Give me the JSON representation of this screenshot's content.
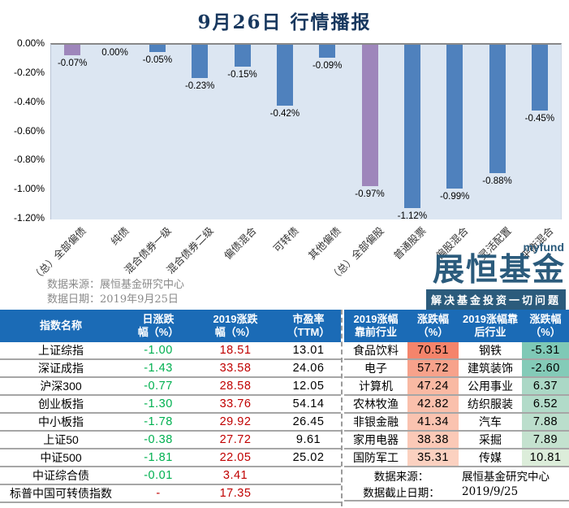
{
  "title": "9月26日  行情播报",
  "chart_data": {
    "type": "bar",
    "title": "9月26日 行情播报",
    "categories": [
      "（总）全部偏债",
      "纯债",
      "混合债券一级",
      "混合债券二级",
      "偏债混合",
      "可转债",
      "其他偏债",
      "（总）全部偏股",
      "普通股票",
      "偏股混合",
      "灵活配置",
      "平衡混合"
    ],
    "values": [
      -0.07,
      0.0,
      -0.05,
      -0.23,
      -0.15,
      -0.42,
      -0.09,
      -0.97,
      -1.12,
      -0.99,
      -0.88,
      -0.45
    ],
    "labels": [
      "-0.07%",
      "0.00%",
      "-0.05%",
      "-0.23%",
      "-0.15%",
      "-0.42%",
      "-0.09%",
      "-0.97%",
      "-1.12%",
      "-0.99%",
      "-0.88%",
      "-0.45%"
    ],
    "bar_colors": [
      "#9E86BB",
      "#4F81BD",
      "#4F81BD",
      "#4F81BD",
      "#4F81BD",
      "#4F81BD",
      "#4F81BD",
      "#9E86BB",
      "#4F81BD",
      "#4F81BD",
      "#4F81BD",
      "#4F81BD"
    ],
    "xlabel": "",
    "ylabel": "",
    "ylim": [
      -1.2,
      0
    ],
    "yticks": [
      "0.00%",
      "-0.20%",
      "-0.40%",
      "-0.60%",
      "-0.80%",
      "-1.00%",
      "-1.20%"
    ],
    "grid": false,
    "legend": "none",
    "plot_bg": "#DCE6F2"
  },
  "chart_source": {
    "source_label": "数据来源：",
    "source": "展恒基金研究中心",
    "date_label": "数据日期：",
    "date": "2019年9月25日"
  },
  "logo": {
    "brand_en": "myfund",
    "brand_cn": "展恒基金",
    "slogan": "解决基金投资一切问题",
    "color": "#2B5B7C"
  },
  "index_table": {
    "headers": [
      "指数名称",
      "日涨跌\n幅（%）",
      "2019涨跌\n幅（%）",
      "市盈率\n（TTM）"
    ],
    "up_color": "#C00000",
    "down_color": "#00B050",
    "rows": [
      {
        "name": "上证综指",
        "daily": "-1.00",
        "daily_color": "#00B050",
        "ytd": "18.51",
        "pe": "13.01"
      },
      {
        "name": "深证成指",
        "daily": "-1.43",
        "daily_color": "#00B050",
        "ytd": "33.58",
        "pe": "24.06"
      },
      {
        "name": "沪深300",
        "daily": "-0.77",
        "daily_color": "#00B050",
        "ytd": "28.58",
        "pe": "12.05"
      },
      {
        "name": "创业板指",
        "daily": "-1.30",
        "daily_color": "#00B050",
        "ytd": "33.76",
        "pe": "54.14"
      },
      {
        "name": "中小板指",
        "daily": "-1.78",
        "daily_color": "#00B050",
        "ytd": "29.92",
        "pe": "26.45"
      },
      {
        "name": "上证50",
        "daily": "-0.38",
        "daily_color": "#00B050",
        "ytd": "27.72",
        "pe": "9.61"
      },
      {
        "name": "中证500",
        "daily": "-1.81",
        "daily_color": "#00B050",
        "ytd": "22.05",
        "pe": "25.02"
      },
      {
        "name": "中证综合债",
        "daily": "-0.01",
        "daily_color": "#00B050",
        "ytd": "3.41",
        "pe": ""
      },
      {
        "name": "标普中国可转债指数",
        "daily": "-",
        "daily_color": "#C00000",
        "ytd": "17.35",
        "pe": ""
      }
    ]
  },
  "industry_table": {
    "headers": [
      "2019涨幅\n靠前行业",
      "涨跌幅\n（%）",
      "2019涨幅靠\n后行业",
      "涨跌幅\n（%）"
    ],
    "rows": [
      {
        "top": "食品饮料",
        "top_val": "70.51",
        "top_bg": "#F5846B",
        "bottom": "钢铁",
        "bottom_val": "-5.31",
        "bottom_bg": "#7FC9B6"
      },
      {
        "top": "电子",
        "top_val": "57.72",
        "top_bg": "#F7A28B",
        "bottom": "建筑装饰",
        "bottom_val": "-2.60",
        "bottom_bg": "#84CBB8"
      },
      {
        "top": "计算机",
        "top_val": "47.24",
        "top_bg": "#F9B9A3",
        "bottom": "公用事业",
        "bottom_val": "6.37",
        "bottom_bg": "#ABD8C6"
      },
      {
        "top": "农林牧渔",
        "top_val": "42.82",
        "top_bg": "#FAC0AC",
        "bottom": "纺织服装",
        "bottom_val": "6.52",
        "bottom_bg": "#B2DBC9"
      },
      {
        "top": "非银金融",
        "top_val": "41.34",
        "top_bg": "#FAC3B0",
        "bottom": "汽车",
        "bottom_val": "7.88",
        "bottom_bg": "#BBDECC"
      },
      {
        "top": "家用电器",
        "top_val": "38.38",
        "top_bg": "#FBC9B7",
        "bottom": "采掘",
        "bottom_val": "7.89",
        "bottom_bg": "#C4E2CF"
      },
      {
        "top": "国防军工",
        "top_val": "35.31",
        "top_bg": "#FBD1C0",
        "bottom": "传媒",
        "bottom_val": "10.81",
        "bottom_bg": "#DCEDDA"
      }
    ],
    "footer": {
      "source_label": "数据来源：",
      "source": "展恒基金研究中心",
      "date_label": "数据截止日期：",
      "date": "2019/9/25"
    }
  }
}
